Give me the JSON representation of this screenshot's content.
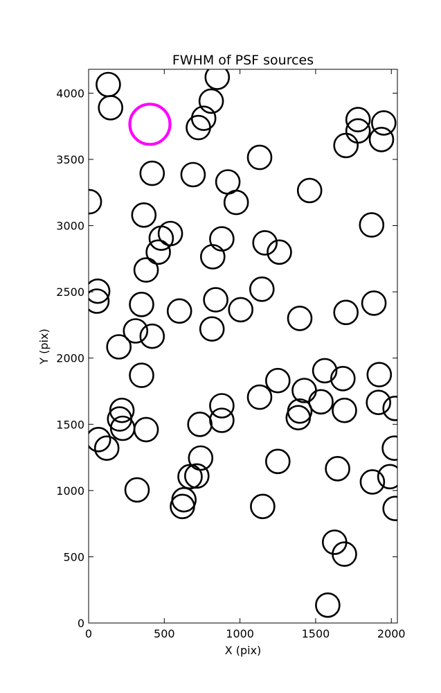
{
  "chart_data": {
    "type": "scatter",
    "title": "FWHM of PSF sources",
    "xlabel": "X (pix)",
    "ylabel": "Y (pix)",
    "xlim": [
      0,
      2040
    ],
    "ylim": [
      0,
      4180
    ],
    "xticks": [
      0,
      500,
      1000,
      1500,
      2000
    ],
    "yticks": [
      0,
      500,
      1000,
      1500,
      2000,
      2500,
      3000,
      3500,
      4000
    ],
    "grid": false,
    "marker": "open-circle",
    "colors": {
      "sources": "#000000",
      "highlight": "#ff00ff"
    },
    "highlight": {
      "x": 405,
      "y": 3765,
      "size": "large"
    },
    "points": [
      [
        850,
        4120
      ],
      [
        130,
        4065
      ],
      [
        145,
        3890
      ],
      [
        810,
        3940
      ],
      [
        760,
        3810
      ],
      [
        725,
        3740
      ],
      [
        1780,
        3800
      ],
      [
        1780,
        3715
      ],
      [
        1700,
        3605
      ],
      [
        1950,
        3775
      ],
      [
        1935,
        3650
      ],
      [
        1130,
        3515
      ],
      [
        690,
        3385
      ],
      [
        420,
        3395
      ],
      [
        920,
        3330
      ],
      [
        1460,
        3265
      ],
      [
        975,
        3175
      ],
      [
        5,
        3180
      ],
      [
        365,
        3080
      ],
      [
        540,
        2940
      ],
      [
        480,
        2905
      ],
      [
        1870,
        3005
      ],
      [
        880,
        2900
      ],
      [
        460,
        2800
      ],
      [
        820,
        2765
      ],
      [
        1165,
        2870
      ],
      [
        1260,
        2800
      ],
      [
        380,
        2665
      ],
      [
        60,
        2505
      ],
      [
        55,
        2430
      ],
      [
        350,
        2405
      ],
      [
        840,
        2440
      ],
      [
        1005,
        2365
      ],
      [
        1145,
        2520
      ],
      [
        600,
        2355
      ],
      [
        1395,
        2300
      ],
      [
        1700,
        2345
      ],
      [
        1885,
        2415
      ],
      [
        310,
        2205
      ],
      [
        420,
        2165
      ],
      [
        815,
        2220
      ],
      [
        200,
        2085
      ],
      [
        350,
        1870
      ],
      [
        1560,
        1905
      ],
      [
        1680,
        1845
      ],
      [
        1920,
        1875
      ],
      [
        1250,
        1830
      ],
      [
        1425,
        1755
      ],
      [
        1130,
        1705
      ],
      [
        1535,
        1670
      ],
      [
        1915,
        1665
      ],
      [
        2025,
        1620
      ],
      [
        1395,
        1600
      ],
      [
        1385,
        1550
      ],
      [
        1690,
        1605
      ],
      [
        880,
        1640
      ],
      [
        220,
        1605
      ],
      [
        205,
        1540
      ],
      [
        225,
        1470
      ],
      [
        380,
        1460
      ],
      [
        735,
        1500
      ],
      [
        880,
        1530
      ],
      [
        65,
        1385
      ],
      [
        120,
        1320
      ],
      [
        2020,
        1320
      ],
      [
        740,
        1245
      ],
      [
        1250,
        1220
      ],
      [
        1645,
        1165
      ],
      [
        670,
        1105
      ],
      [
        715,
        1110
      ],
      [
        1875,
        1065
      ],
      [
        1990,
        1105
      ],
      [
        320,
        1005
      ],
      [
        630,
        930
      ],
      [
        620,
        880
      ],
      [
        1150,
        880
      ],
      [
        2025,
        865
      ],
      [
        1625,
        610
      ],
      [
        1690,
        520
      ],
      [
        1580,
        135
      ]
    ]
  }
}
